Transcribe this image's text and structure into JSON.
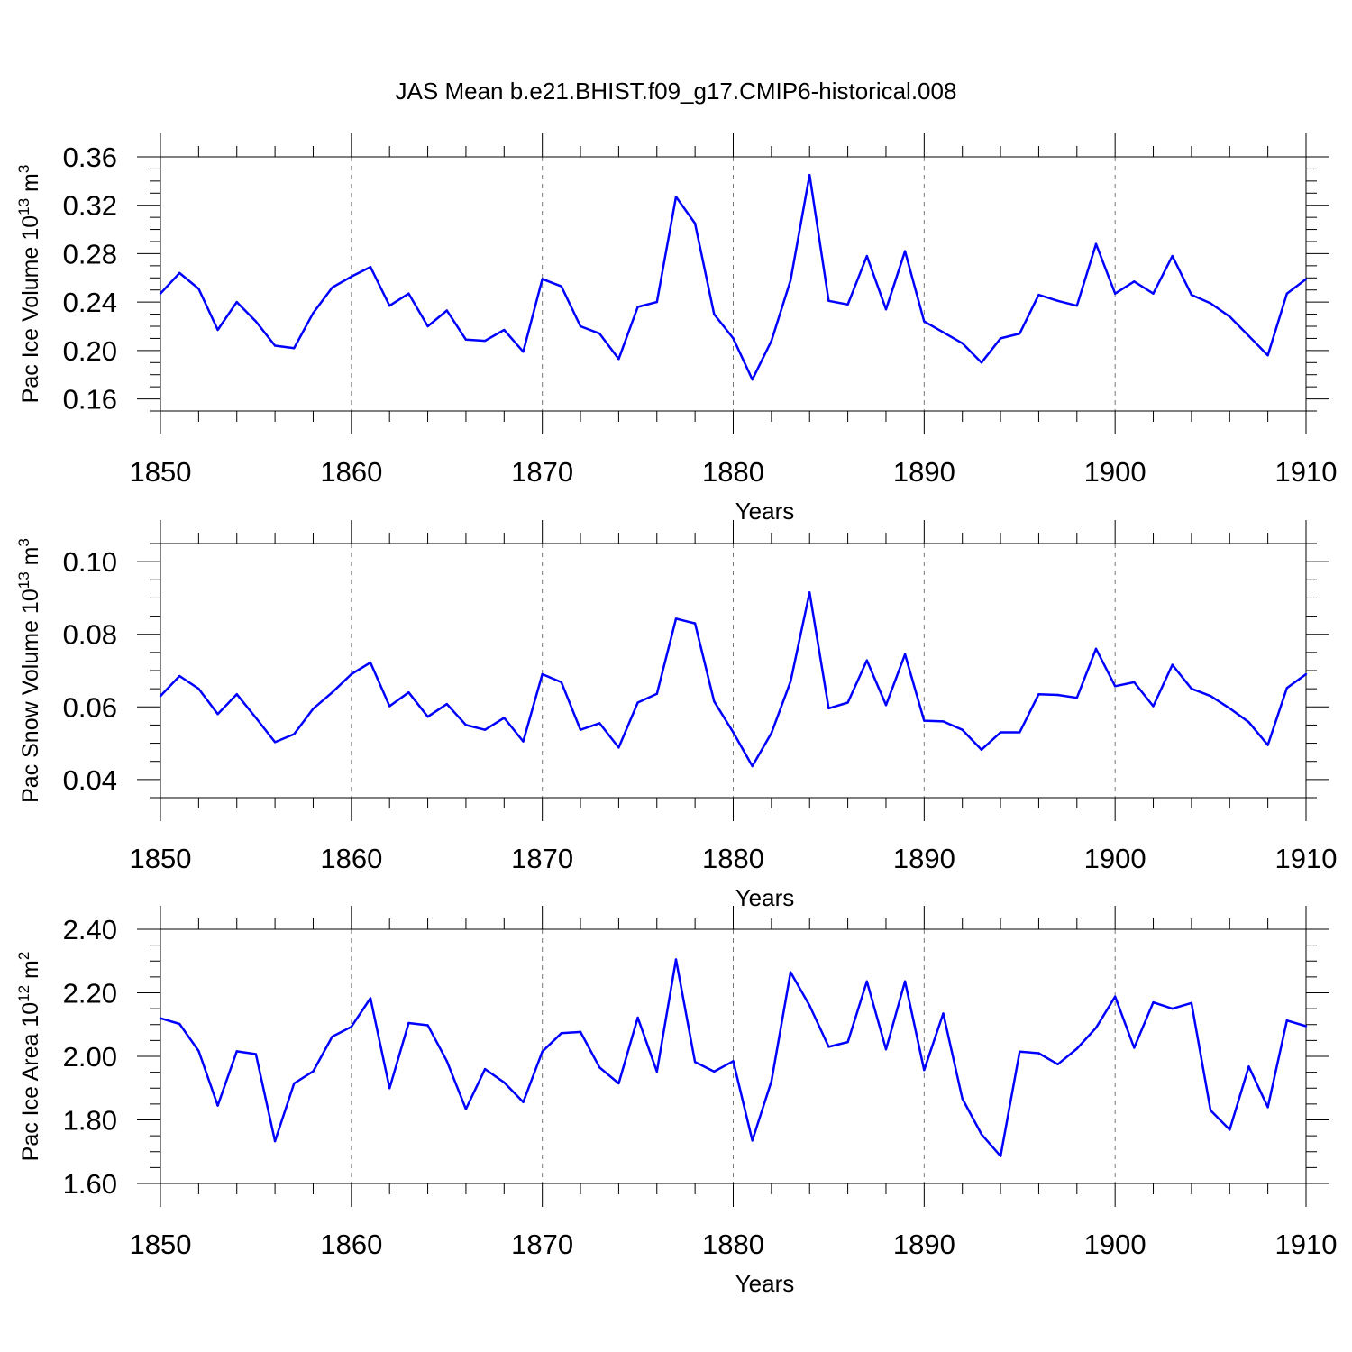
{
  "title": "JAS Mean b.e21.BHIST.f09_g17.CMIP6-historical.008",
  "colors": {
    "series": "#0000ff",
    "axes": "#000000",
    "grid": "#777777"
  },
  "chart_data": [
    {
      "type": "line",
      "title": "JAS Mean b.e21.BHIST.f09_g17.CMIP6-historical.008",
      "ylabel": {
        "main": "Pac Ice Volume 10",
        "exp": "13",
        "unit": " m",
        "unit_exp": "3"
      },
      "xlabel": "Years",
      "xlim": [
        1850,
        1910
      ],
      "ylim": [
        0.15,
        0.36
      ],
      "x_ticks": [
        1850,
        1860,
        1870,
        1880,
        1890,
        1900,
        1910
      ],
      "x_tick_labels": [
        "1850",
        "1860",
        "1870",
        "1880",
        "1890",
        "1900",
        "1910"
      ],
      "y_ticks": [
        0.16,
        0.2,
        0.24,
        0.28,
        0.32,
        0.36
      ],
      "y_tick_labels": [
        "0.16",
        "0.20",
        "0.24",
        "0.28",
        "0.32",
        "0.36"
      ],
      "grid": "dashed vertical at labeled years",
      "x": [
        1850,
        1851,
        1852,
        1853,
        1854,
        1855,
        1856,
        1857,
        1858,
        1859,
        1860,
        1861,
        1862,
        1863,
        1864,
        1865,
        1866,
        1867,
        1868,
        1869,
        1870,
        1871,
        1872,
        1873,
        1874,
        1875,
        1876,
        1877,
        1878,
        1879,
        1880,
        1881,
        1882,
        1883,
        1884,
        1885,
        1886,
        1887,
        1888,
        1889,
        1890,
        1891,
        1892,
        1893,
        1894,
        1895,
        1896,
        1897,
        1898,
        1899,
        1900,
        1901,
        1902,
        1903,
        1904,
        1905,
        1906,
        1907,
        1908,
        1909,
        1910
      ],
      "values": [
        0.247,
        0.264,
        0.251,
        0.217,
        0.24,
        0.224,
        0.204,
        0.202,
        0.231,
        0.252,
        0.261,
        0.269,
        0.237,
        0.247,
        0.22,
        0.233,
        0.209,
        0.208,
        0.217,
        0.199,
        0.259,
        0.253,
        0.22,
        0.214,
        0.193,
        0.236,
        0.24,
        0.327,
        0.305,
        0.23,
        0.21,
        0.176,
        0.208,
        0.258,
        0.345,
        0.241,
        0.238,
        0.278,
        0.234,
        0.282,
        0.224,
        0.215,
        0.206,
        0.19,
        0.21,
        0.214,
        0.246,
        0.241,
        0.237,
        0.288,
        0.247,
        0.257,
        0.247,
        0.278,
        0.246,
        0.239,
        0.228,
        0.212,
        0.196,
        0.247,
        0.259
      ]
    },
    {
      "type": "line",
      "ylabel": {
        "main": "Pac Snow Volume 10",
        "exp": "13",
        "unit": " m",
        "unit_exp": "3"
      },
      "xlabel": "Years",
      "xlim": [
        1850,
        1910
      ],
      "ylim": [
        0.035,
        0.105
      ],
      "x_ticks": [
        1850,
        1860,
        1870,
        1880,
        1890,
        1900,
        1910
      ],
      "x_tick_labels": [
        "1850",
        "1860",
        "1870",
        "1880",
        "1890",
        "1900",
        "1910"
      ],
      "y_ticks": [
        0.04,
        0.06,
        0.08,
        0.1
      ],
      "y_tick_labels": [
        "0.04",
        "0.06",
        "0.08",
        "0.10"
      ],
      "grid": "dashed vertical at labeled years",
      "x": [
        1850,
        1851,
        1852,
        1853,
        1854,
        1855,
        1856,
        1857,
        1858,
        1859,
        1860,
        1861,
        1862,
        1863,
        1864,
        1865,
        1866,
        1867,
        1868,
        1869,
        1870,
        1871,
        1872,
        1873,
        1874,
        1875,
        1876,
        1877,
        1878,
        1879,
        1880,
        1881,
        1882,
        1883,
        1884,
        1885,
        1886,
        1887,
        1888,
        1889,
        1890,
        1891,
        1892,
        1893,
        1894,
        1895,
        1896,
        1897,
        1898,
        1899,
        1900,
        1901,
        1902,
        1903,
        1904,
        1905,
        1906,
        1907,
        1908,
        1909,
        1910
      ],
      "values": [
        0.063,
        0.0685,
        0.065,
        0.058,
        0.0635,
        0.057,
        0.0503,
        0.0525,
        0.0595,
        0.064,
        0.069,
        0.0722,
        0.0602,
        0.064,
        0.0573,
        0.0608,
        0.055,
        0.0537,
        0.057,
        0.0505,
        0.069,
        0.0668,
        0.0537,
        0.0555,
        0.0488,
        0.0612,
        0.0636,
        0.0843,
        0.083,
        0.0615,
        0.053,
        0.0437,
        0.0528,
        0.067,
        0.0915,
        0.0596,
        0.0612,
        0.0728,
        0.0605,
        0.0745,
        0.0562,
        0.056,
        0.0537,
        0.0482,
        0.053,
        0.053,
        0.0635,
        0.0633,
        0.0625,
        0.076,
        0.0657,
        0.0668,
        0.0602,
        0.0716,
        0.065,
        0.063,
        0.0596,
        0.0558,
        0.0495,
        0.0652,
        0.069
      ]
    },
    {
      "type": "line",
      "ylabel": {
        "main": "Pac Ice Area 10",
        "exp": "12",
        "unit": " m",
        "unit_exp": "2"
      },
      "xlabel": "Years",
      "xlim": [
        1850,
        1910
      ],
      "ylim": [
        1.6,
        2.4
      ],
      "x_ticks": [
        1850,
        1860,
        1870,
        1880,
        1890,
        1900,
        1910
      ],
      "x_tick_labels": [
        "1850",
        "1860",
        "1870",
        "1880",
        "1890",
        "1900",
        "1910"
      ],
      "y_ticks": [
        1.6,
        1.8,
        2.0,
        2.2,
        2.4
      ],
      "y_tick_labels": [
        "1.60",
        "1.80",
        "2.00",
        "2.20",
        "2.40"
      ],
      "grid": "dashed vertical at labeled years",
      "x": [
        1850,
        1851,
        1852,
        1853,
        1854,
        1855,
        1856,
        1857,
        1858,
        1859,
        1860,
        1861,
        1862,
        1863,
        1864,
        1865,
        1866,
        1867,
        1868,
        1869,
        1870,
        1871,
        1872,
        1873,
        1874,
        1875,
        1876,
        1877,
        1878,
        1879,
        1880,
        1881,
        1882,
        1883,
        1884,
        1885,
        1886,
        1887,
        1888,
        1889,
        1890,
        1891,
        1892,
        1893,
        1894,
        1895,
        1896,
        1897,
        1898,
        1899,
        1900,
        1901,
        1902,
        1903,
        1904,
        1905,
        1906,
        1907,
        1908,
        1909,
        1910
      ],
      "values": [
        2.12,
        2.102,
        2.017,
        1.845,
        2.016,
        2.007,
        1.733,
        1.915,
        1.953,
        2.062,
        2.093,
        2.183,
        1.9,
        2.105,
        2.098,
        1.985,
        1.834,
        1.96,
        1.918,
        1.856,
        2.015,
        2.073,
        2.077,
        1.965,
        1.915,
        2.122,
        1.952,
        2.305,
        1.982,
        1.952,
        1.985,
        1.735,
        1.922,
        2.265,
        2.16,
        2.03,
        2.045,
        2.236,
        2.022,
        2.236,
        1.957,
        2.135,
        1.867,
        1.755,
        1.686,
        2.015,
        2.01,
        1.975,
        2.024,
        2.09,
        2.188,
        2.027,
        2.17,
        2.15,
        2.168,
        1.83,
        1.769,
        1.968,
        1.84,
        2.113,
        2.095
      ]
    }
  ]
}
